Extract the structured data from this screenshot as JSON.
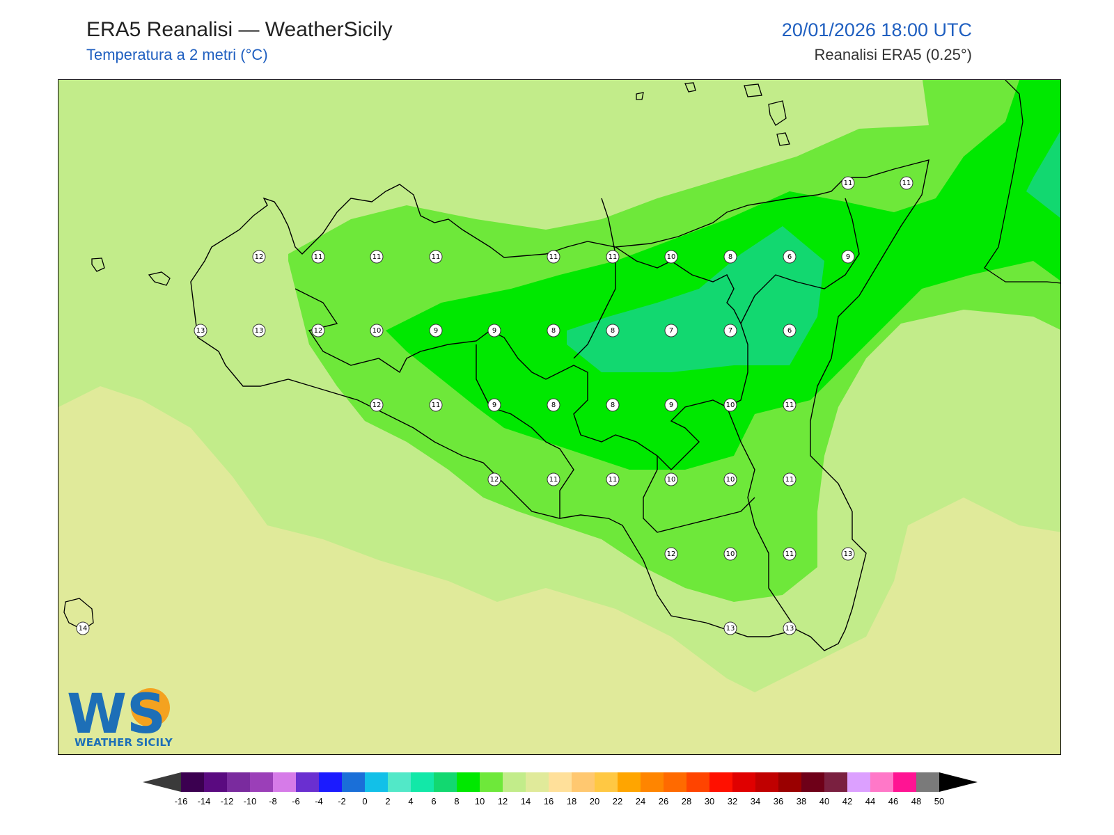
{
  "header": {
    "title": "ERA5 Reanalisi — WeatherSicily",
    "subtitle": "Temperatura a 2 metri (°C)",
    "datetime": "20/01/2026 18:00 UTC",
    "source": "Reanalisi ERA5 (0.25°)"
  },
  "logo": {
    "text": "WEATHER SICILY",
    "letters": "WS"
  },
  "map_labels": [
    {
      "v": "12"
    },
    {
      "v": "11"
    },
    {
      "v": "11"
    },
    {
      "v": "11"
    },
    {
      "v": "11"
    },
    {
      "v": "11"
    },
    {
      "v": "10"
    },
    {
      "v": "8"
    },
    {
      "v": "6"
    },
    {
      "v": "9"
    },
    {
      "v": "13"
    },
    {
      "v": "13"
    },
    {
      "v": "12"
    },
    {
      "v": "10"
    },
    {
      "v": "9"
    },
    {
      "v": "9"
    },
    {
      "v": "8"
    },
    {
      "v": "8"
    },
    {
      "v": "7"
    },
    {
      "v": "7"
    },
    {
      "v": "6"
    },
    {
      "v": "12"
    },
    {
      "v": "11"
    },
    {
      "v": "9"
    },
    {
      "v": "8"
    },
    {
      "v": "8"
    },
    {
      "v": "9"
    },
    {
      "v": "10"
    },
    {
      "v": "11"
    },
    {
      "v": "12"
    },
    {
      "v": "11"
    },
    {
      "v": "11"
    },
    {
      "v": "10"
    },
    {
      "v": "10"
    },
    {
      "v": "11"
    },
    {
      "v": "12"
    },
    {
      "v": "10"
    },
    {
      "v": "11"
    },
    {
      "v": "13"
    },
    {
      "v": "14"
    },
    {
      "v": "13"
    },
    {
      "v": "13"
    },
    {
      "v": "11"
    },
    {
      "v": "11"
    }
  ],
  "colorbar": {
    "ticks": [
      "-16",
      "-14",
      "-12",
      "-10",
      "-8",
      "-6",
      "-4",
      "-2",
      "0",
      "2",
      "4",
      "6",
      "8",
      "10",
      "12",
      "14",
      "16",
      "18",
      "20",
      "22",
      "24",
      "26",
      "28",
      "30",
      "32",
      "34",
      "36",
      "38",
      "40",
      "42",
      "44",
      "46",
      "48",
      "50"
    ],
    "colors": [
      "#3b0050",
      "#5a0a80",
      "#7a2b9e",
      "#9b3fb8",
      "#d67be8",
      "#6a2fd0",
      "#1b1bff",
      "#1a6fd8",
      "#12c0e8",
      "#52e8c8",
      "#12e8a8",
      "#12d870",
      "#00e800",
      "#6ee83a",
      "#c2ec8a",
      "#e0ea9a",
      "#ffe09a",
      "#ffc870",
      "#ffc843",
      "#ffa500",
      "#ff8500",
      "#ff6a00",
      "#ff4400",
      "#ff1000",
      "#e00000",
      "#c00000",
      "#9a0000",
      "#6e0018",
      "#7a2040",
      "#dca0ff",
      "#ff78c8",
      "#ff1493",
      "#7a7a7a",
      "#3a3a3a"
    ]
  }
}
